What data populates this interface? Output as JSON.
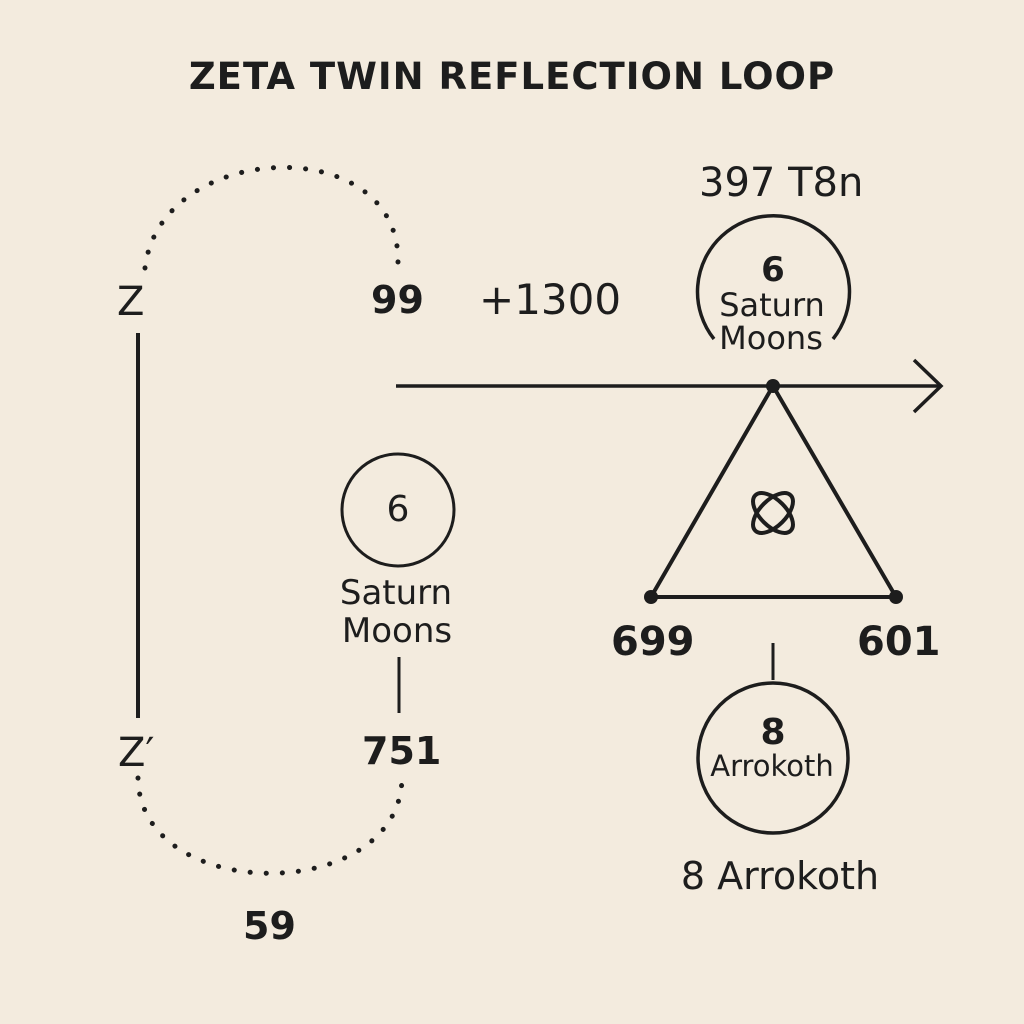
{
  "title": "ZETA TWIN REFLECTION LOOP",
  "left_loop": {
    "z_label": "Z",
    "z_prime_label": "Z′",
    "top_value": "99",
    "bottom_value": "59",
    "side_value": "751"
  },
  "center": {
    "offset_label": "+1300",
    "moon_count": "6",
    "moon_label_line1": "Saturn",
    "moon_label_line2": "Moons"
  },
  "top_right": {
    "header": "397 T8n",
    "moon_count": "6",
    "moon_label_line1": "Saturn",
    "moon_label_line2": "Moons"
  },
  "triangle": {
    "left_value": "699",
    "right_value": "601",
    "center_symbol": "orbit-knot-icon"
  },
  "bottom_right": {
    "count": "8",
    "circle_label": "Arrokoth",
    "caption": "8 Arrokoth"
  },
  "colors": {
    "background": "#f3ebde",
    "ink": "#1d1d1d"
  }
}
